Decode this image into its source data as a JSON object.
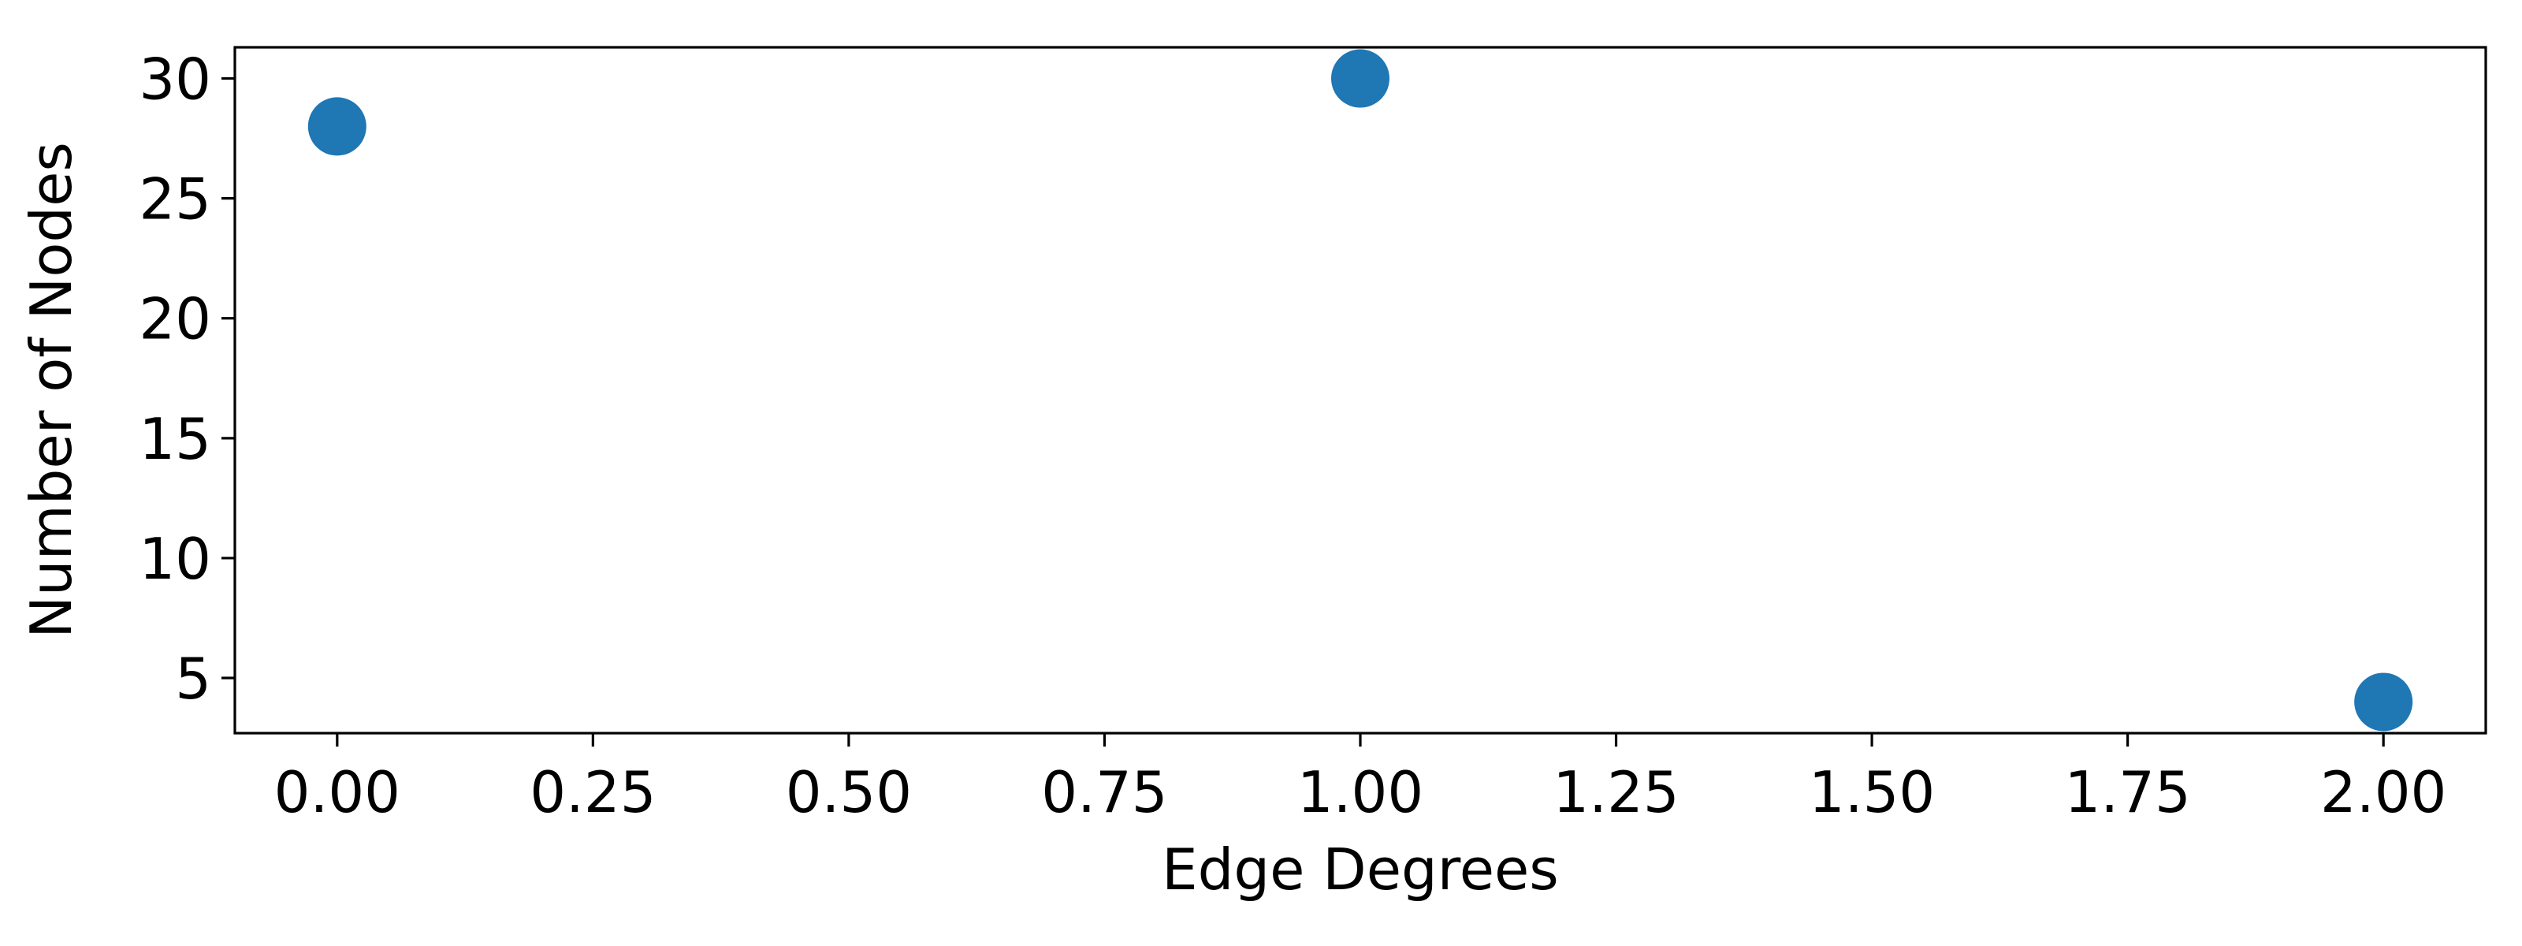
{
  "chart_data": {
    "type": "scatter",
    "x": [
      0.0,
      1.0,
      2.0
    ],
    "y": [
      28,
      30,
      4
    ],
    "xlabel": "Edge Degrees",
    "ylabel": "Number of Nodes",
    "xlim": [
      -0.1,
      2.1
    ],
    "ylim": [
      2.7,
      31.3
    ],
    "x_ticks": [
      0.0,
      0.25,
      0.5,
      0.75,
      1.0,
      1.25,
      1.5,
      1.75,
      2.0
    ],
    "x_tick_labels": [
      "0.00",
      "0.25",
      "0.50",
      "0.75",
      "1.00",
      "1.25",
      "1.50",
      "1.75",
      "2.00"
    ],
    "y_ticks": [
      5,
      10,
      15,
      20,
      25,
      30
    ],
    "y_tick_labels": [
      "5",
      "10",
      "15",
      "20",
      "25",
      "30"
    ],
    "grid": false,
    "legend": "none",
    "marker_color": "#1f77b4"
  }
}
